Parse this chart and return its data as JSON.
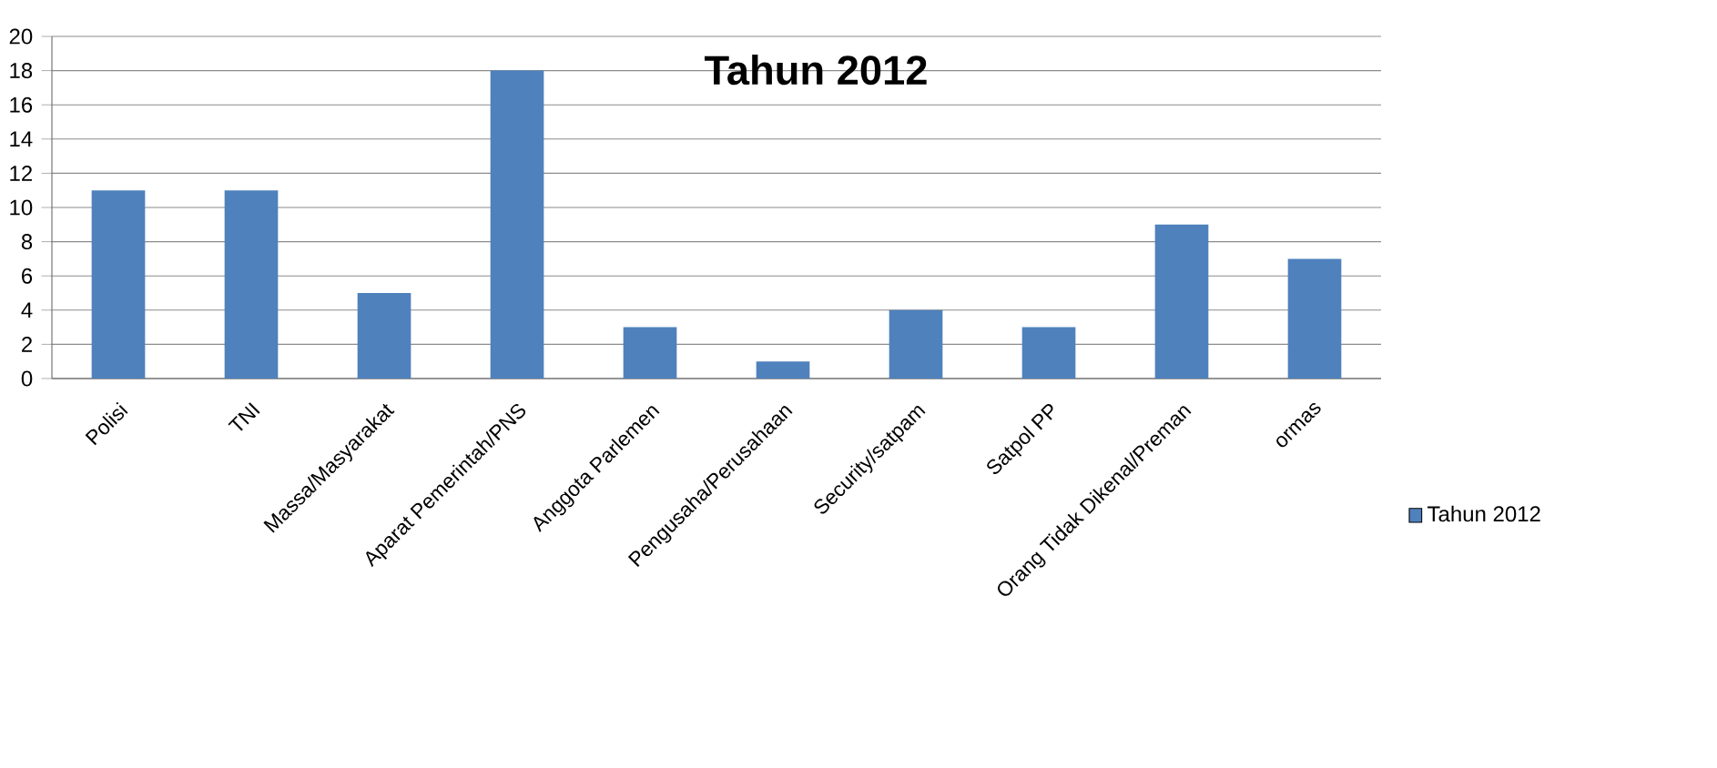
{
  "chart_data": {
    "type": "bar",
    "title": "Tahun 2012",
    "categories": [
      "Polisi",
      "TNI",
      "Massa/Masyarakat",
      "Aparat Pemerintah/PNS",
      "Anggota Parlemen",
      "Pengusaha/Perusahaan",
      "Security/satpam",
      "Satpol PP",
      "Orang Tidak Dikenal/Preman",
      "ormas"
    ],
    "series": [
      {
        "name": "Tahun 2012",
        "color": "#4f81bd",
        "values": [
          11,
          11,
          5,
          18,
          3,
          1,
          4,
          3,
          9,
          7
        ]
      }
    ],
    "ylim": [
      0,
      20
    ],
    "yticks": [
      0,
      2,
      4,
      6,
      8,
      10,
      12,
      14,
      16,
      18,
      20
    ],
    "grid": "y",
    "legend": "right"
  }
}
